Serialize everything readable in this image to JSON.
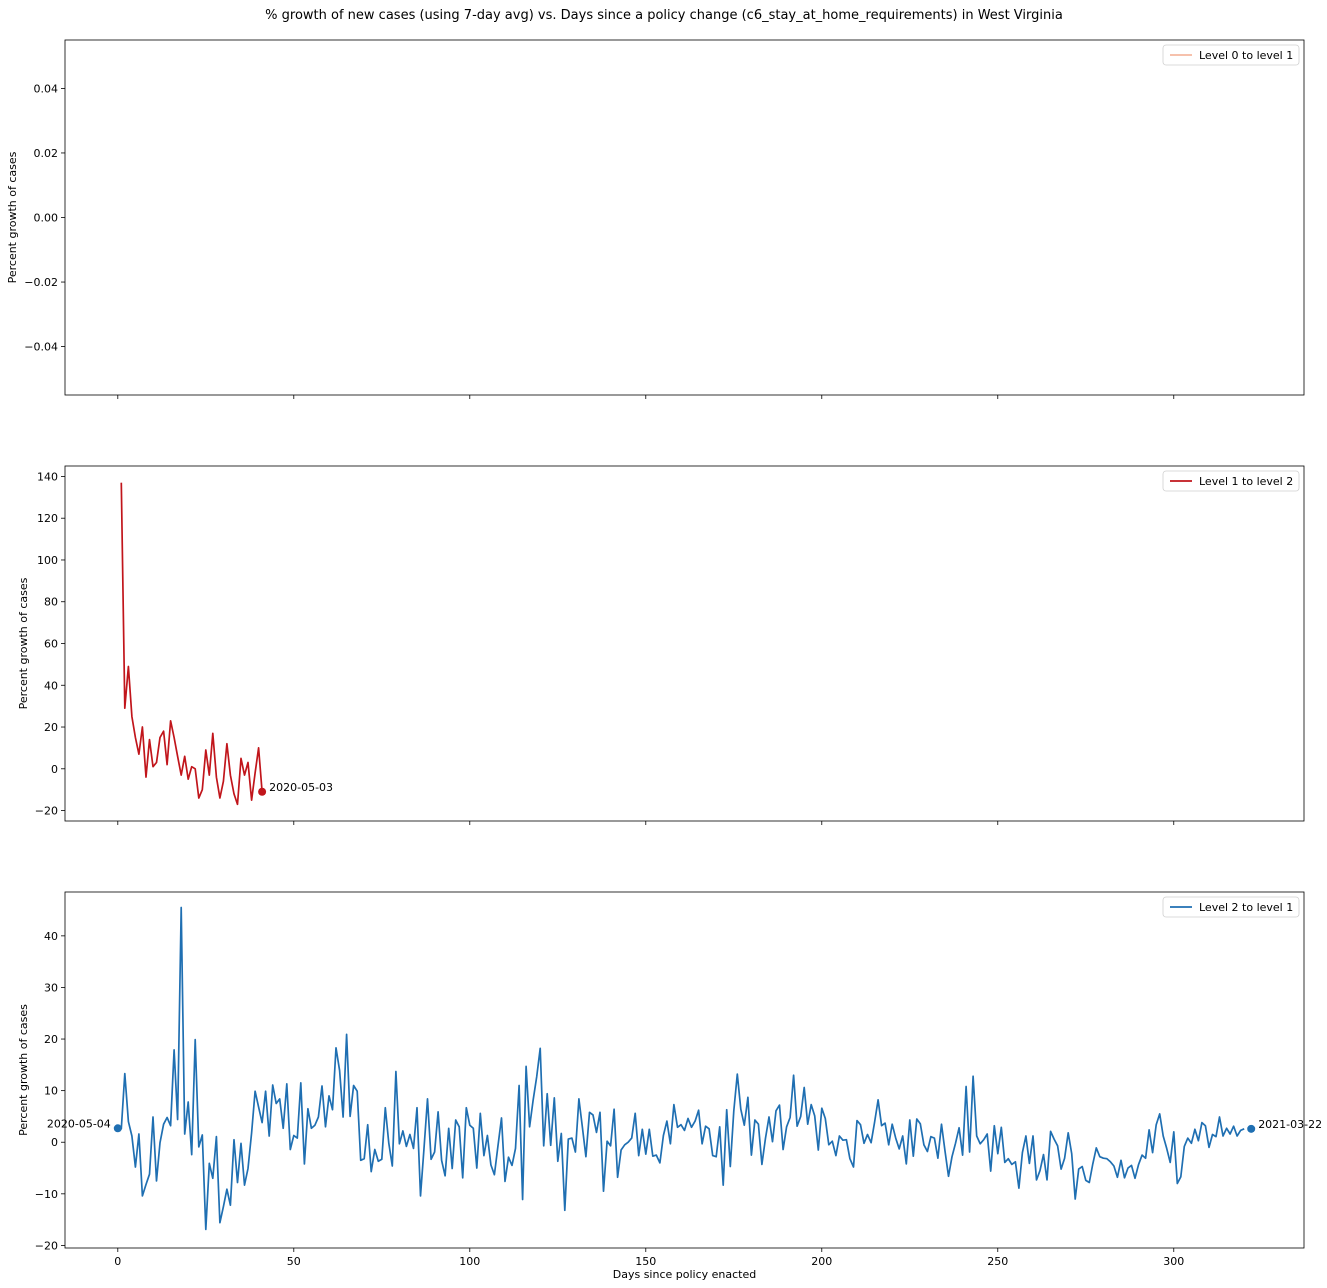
{
  "figure": {
    "title": "% growth of new cases (using 7-day avg) vs. Days since a policy change (c6_stay_at_home_requirements) in West Virginia",
    "xlabel": "Days since policy enacted"
  },
  "chart_data": [
    {
      "type": "line",
      "ylabel": "Percent growth of cases",
      "xlim": [
        -15,
        337
      ],
      "ylim": [
        -0.055,
        0.055
      ],
      "x_ticks": [
        0,
        50,
        100,
        150,
        200,
        250,
        300
      ],
      "x_tick_labels_visible": false,
      "y_ticks": [
        -0.04,
        -0.02,
        0.0,
        0.02,
        0.04
      ],
      "y_tick_labels": [
        "−0.04",
        "−0.02",
        "0.00",
        "0.02",
        "0.04"
      ],
      "legend_position": "top-right",
      "grid": false,
      "series": [
        {
          "name": "Level 0 to level 1",
          "color": "#f4b8a0",
          "x": [],
          "y": []
        }
      ],
      "annotations": []
    },
    {
      "type": "line",
      "ylabel": "Percent growth of cases",
      "xlim": [
        -15,
        337
      ],
      "ylim": [
        -25,
        145
      ],
      "x_ticks": [
        0,
        50,
        100,
        150,
        200,
        250,
        300
      ],
      "x_tick_labels_visible": false,
      "y_ticks": [
        -20,
        0,
        20,
        40,
        60,
        80,
        100,
        120,
        140
      ],
      "y_tick_labels": [
        "−20",
        "0",
        "20",
        "40",
        "60",
        "80",
        "100",
        "120",
        "140"
      ],
      "legend_position": "top-right",
      "grid": false,
      "series": [
        {
          "name": "Level 1 to level 2",
          "color": "#c1151b",
          "x": [
            1,
            2,
            3,
            4,
            5,
            6,
            7,
            8,
            9,
            10,
            11,
            12,
            13,
            14,
            15,
            16,
            17,
            18,
            19,
            20,
            21,
            22,
            23,
            24,
            25,
            26,
            27,
            28,
            29,
            30,
            31,
            32,
            33,
            34,
            35,
            36,
            37,
            38,
            39,
            40,
            41
          ],
          "y": [
            137,
            29,
            49,
            25,
            15,
            7,
            20,
            -4,
            14,
            1,
            3,
            15,
            18,
            2,
            23,
            15,
            6,
            -3,
            6,
            -5,
            1,
            0,
            -14,
            -10,
            9,
            -3,
            17,
            -4,
            -14,
            -6,
            12,
            -3,
            -12,
            -17,
            5,
            -3,
            3,
            -15,
            -2,
            10,
            -11
          ]
        }
      ],
      "annotations": [
        {
          "x": 41,
          "y": -11,
          "text": "2020-05-03",
          "side": "right"
        }
      ]
    },
    {
      "type": "line",
      "ylabel": "Percent growth of cases",
      "xlabel": "Days since policy enacted",
      "xlim": [
        -15,
        337
      ],
      "ylim": [
        -20.5,
        48.5
      ],
      "x_ticks": [
        0,
        50,
        100,
        150,
        200,
        250,
        300
      ],
      "x_tick_labels": [
        "0",
        "50",
        "100",
        "150",
        "200",
        "250",
        "300"
      ],
      "x_tick_labels_visible": true,
      "y_ticks": [
        -20,
        -10,
        0,
        10,
        20,
        30,
        40
      ],
      "y_tick_labels": [
        "−20",
        "−10",
        "0",
        "10",
        "20",
        "30",
        "40"
      ],
      "legend_position": "top-right",
      "grid": false,
      "series": [
        {
          "name": "Level 2 to level 1",
          "color": "#1f6fb2",
          "x_start": 0,
          "x_step": 1,
          "y": [
            2.7,
            2.6,
            13.3,
            4,
            1.2,
            -4.8,
            1.6,
            -10.4,
            -8.2,
            -6.2,
            4.9,
            -7.5,
            -0.1,
            3.5,
            4.8,
            3.2,
            17.9,
            4.4,
            45.5,
            1.6,
            7.8,
            -2.4,
            19.9,
            -0.9,
            1.4,
            -16.9,
            -4.1,
            -7,
            1.1,
            -15.6,
            -12.5,
            -9.1,
            -12.2,
            0.5,
            -7.8,
            -0.2,
            -8.3,
            -5.1,
            1.8,
            9.9,
            6.8,
            3.8,
            9.9,
            1.2,
            11.1,
            7.5,
            8.4,
            2.7,
            11.3,
            -1.4,
            1.3,
            0.8,
            11.5,
            -4.2,
            6.5,
            2.7,
            3.3,
            4.9,
            10.9,
            3,
            9,
            6.3,
            18.3,
            13.9,
            4.9,
            20.9,
            5,
            11,
            9.9,
            -3.5,
            -3.2,
            3.4,
            -5.7,
            -1.4,
            -3.7,
            -3.3,
            6.7,
            -0.2,
            -4.6,
            13.7,
            -0.3,
            2.2,
            -0.8,
            1.5,
            -1.2,
            6.7,
            -10.4,
            -1.2,
            8.4,
            -3.3,
            -1.9,
            5.9,
            -3.5,
            -6.5,
            2.7,
            -5.1,
            4.3,
            3,
            -6.9,
            6.7,
            3.3,
            2.7,
            -5,
            5.6,
            -2.6,
            1.3,
            -4.4,
            -6.3,
            -0.8,
            4.7,
            -7.6,
            -2.9,
            -4.5,
            -1.2,
            11,
            -11.1,
            14.7,
            3,
            8.1,
            12.7,
            18.2,
            -0.7,
            9.4,
            -0.6,
            8.6,
            -3.7,
            1.7,
            -13.2,
            0.6,
            0.8,
            -1.9,
            8.4,
            2.9,
            -2.8,
            5.8,
            5.3,
            1.9,
            5.8,
            -9.5,
            0.2,
            -0.7,
            6.4,
            -6.8,
            -1.5,
            -0.5,
            0,
            0.8,
            5.6,
            -2.6,
            2.5,
            -2.3,
            2.5,
            -2.7,
            -2.5,
            -4,
            1.3,
            4.1,
            -0.3,
            7.3,
            2.9,
            3.4,
            2.3,
            4.6,
            2.9,
            4.1,
            6.2,
            -0.3,
            3.1,
            2.6,
            -2.6,
            -2.8,
            3,
            -8.3,
            6.3,
            -4.7,
            6.1,
            13.2,
            6.4,
            3.3,
            8.7,
            -2.5,
            4.3,
            3.5,
            -4.3,
            0.8,
            4.9,
            0.1,
            6.1,
            7.2,
            -1.4,
            3,
            4.8,
            13,
            3.1,
            5,
            10.6,
            3.5,
            7.3,
            5.1,
            -1.5,
            6.6,
            4.6,
            -0.5,
            0.2,
            -2.6,
            1.2,
            0.4,
            0.5,
            -3.2,
            -4.8,
            4.2,
            3.4,
            -0.2,
            1.5,
            -0.1,
            3.9,
            8.2,
            3.2,
            3.7,
            -0.5,
            3.5,
            0.8,
            -1.3,
            1.2,
            -4.2,
            4.3,
            -2.7,
            4.5,
            3.6,
            -0.5,
            -1.8,
            1.1,
            0.8,
            -3.1,
            3.5,
            -1.7,
            -6.6,
            -2.8,
            -0.2,
            2.8,
            -2.5,
            10.8,
            -1.9,
            12.8,
            1.2,
            -0.3,
            0.5,
            1.6,
            -5.6,
            3.2,
            -2.2,
            2.9,
            -3.9,
            -3.2,
            -4.3,
            -3.8,
            -8.9,
            -2,
            1.2,
            -4.1,
            1.2,
            -7.3,
            -5.5,
            -2.4,
            -7.3,
            2.1,
            0.6,
            -0.7,
            -5.2,
            -3.1,
            1.8,
            -2.2,
            -11,
            -5.2,
            -4.7,
            -7.4,
            -7.8,
            -4.2,
            -1.1,
            -2.8,
            -3.1,
            -3.2,
            -3.8,
            -4.6,
            -6.8,
            -3.5,
            -6.9,
            -5,
            -4.5,
            -7,
            -4.3,
            -2.5,
            -3.1,
            2.4,
            -2,
            3.4,
            5.5,
            1.2,
            -1.2,
            -3.9,
            2,
            -8,
            -6.7,
            -0.8,
            0.8,
            -0.2,
            2.5,
            0.3,
            3.8,
            3.2,
            -1,
            1.5,
            1.1,
            4.9,
            1.2,
            2.7,
            1.6,
            3.1,
            1.2,
            2.3,
            2.6
          ]
        }
      ],
      "annotations": [
        {
          "x": 0,
          "y": 2.7,
          "text": "2020-05-04",
          "side": "left"
        },
        {
          "x": 322,
          "y": 2.6,
          "text": "2021-03-22",
          "side": "right"
        }
      ]
    }
  ]
}
